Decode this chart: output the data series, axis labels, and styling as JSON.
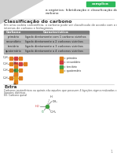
{
  "bg_color": "#f5f5f5",
  "header_tri_color": "#d0d0d0",
  "header_tag_color": "#2db85a",
  "header_tag_text": "complica",
  "title_line1": "a orgânica: hibridização e classificação do",
  "title_line2": "carbono",
  "section1_title": "Classificação do carbono",
  "body_text1": "Em uma cadeia carbonífera, o carbono pode ser classificado de acordo com o número de carbonos",
  "body_text2": "internos de carbono e hidrogênios.",
  "table_header": [
    "Carbono",
    "Característica"
  ],
  "table_rows": [
    [
      "primário",
      "ligado diretamente com 1 carbono vizinhos"
    ],
    [
      "secundário",
      "ligado diretamente a 2 carbonos vizinhos"
    ],
    [
      "terciário",
      "ligado diretamente a 3 carbonos vizinhos"
    ],
    [
      "quaternário",
      "ligado diretamente a 4 carbonos vizinhos"
    ]
  ],
  "table_header_bg": "#808080",
  "table_row_bg_alt1": "#c8c8c8",
  "table_row_bg_alt2": "#b0b0b0",
  "legend_items": [
    {
      "label": "= primário",
      "color": "#e08020"
    },
    {
      "label": "= secundário",
      "color": "#d04040"
    },
    {
      "label": "= terciário",
      "color": "#40a040"
    },
    {
      "label": "= quaternário",
      "color": "#e0a020"
    }
  ],
  "section2_title": "Extra",
  "extra_text1": "Carbonos assimétricos ou quirais são aqueles que possuem 4 ligações sigma realizadas com 4",
  "extra_text2": "ligantes distintos.",
  "extra_text3": "Ex: Carbono quiral",
  "page_number": "1",
  "node_primary": "#e08020",
  "node_secondary": "#d04040",
  "node_tertiary": "#40a040",
  "node_quaternary": "#e0a020",
  "bond_color": "#888888"
}
